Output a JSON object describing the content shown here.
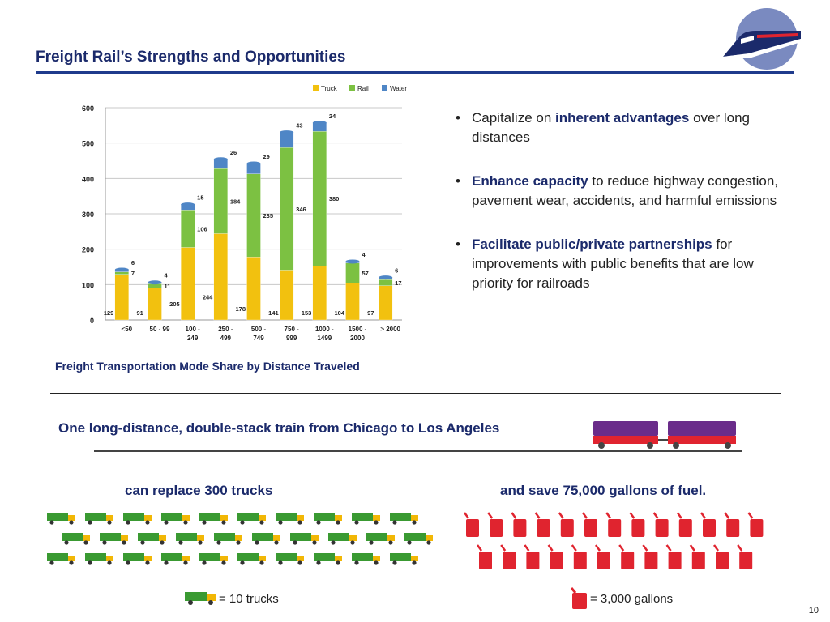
{
  "slide": {
    "title": "Freight Rail’s Strengths and Opportunities",
    "page_number": "10"
  },
  "chart_caption": "Freight Transportation Mode Share by Distance Traveled",
  "chart_data": {
    "type": "bar",
    "stacked": true,
    "categories": [
      "<50",
      "50 - 99",
      "100 - 249",
      "250 - 499",
      "500 - 749",
      "750 - 999",
      "1000 - 1499",
      "1500 - 2000",
      "> 2000"
    ],
    "series": [
      {
        "name": "Truck",
        "values": [
          129,
          91,
          205,
          244,
          178,
          141,
          153,
          104,
          97
        ],
        "color": "#f2c10f"
      },
      {
        "name": "Rail",
        "values": [
          7,
          11,
          106,
          184,
          235,
          346,
          380,
          57,
          17
        ],
        "color": "#7cc142"
      },
      {
        "name": "Water",
        "values": [
          6,
          4,
          15,
          26,
          29,
          43,
          24,
          4,
          6
        ],
        "color": "#4f86c6"
      }
    ],
    "ylim": [
      0,
      600
    ],
    "yticks": [
      0,
      100,
      200,
      300,
      400,
      500,
      600
    ],
    "grid": true,
    "legend": "top-center"
  },
  "bullets": [
    {
      "pre": "Capitalize on ",
      "bold": "inherent advantages",
      "post": " over long distances"
    },
    {
      "pre": "",
      "bold": "Enhance capacity",
      "post": " to reduce highway congestion, pavement wear, accidents, and harmful emissions"
    },
    {
      "pre": "",
      "bold": "Facilitate public/private partnerships",
      "post": " for improvements with public benefits that are low priority for railroads"
    }
  ],
  "train_headline": "One long-distance, double-stack train from Chicago to Los Angeles",
  "trucks_heading": "can replace 300 trucks",
  "fuel_heading": "and save 75,000 gallons of fuel.",
  "trucks_icon": {
    "count": 30,
    "per_row": [
      10,
      10,
      10
    ],
    "icon": "truck-icon"
  },
  "cans_icon": {
    "count": 25,
    "per_row": [
      13,
      12
    ],
    "icon": "fuel-can-icon"
  },
  "legend": {
    "truck_text": "= 10 trucks",
    "can_text": "= 3,000 gallons"
  },
  "colors": {
    "title": "#1b2a6b",
    "accent_rule": "#1f3b8c",
    "truck_body": "#3a9a32",
    "truck_cab": "#f2b705",
    "fuel_can": "#e0242f",
    "train_top": "#6a2c8a",
    "train_bottom": "#e0242f"
  }
}
